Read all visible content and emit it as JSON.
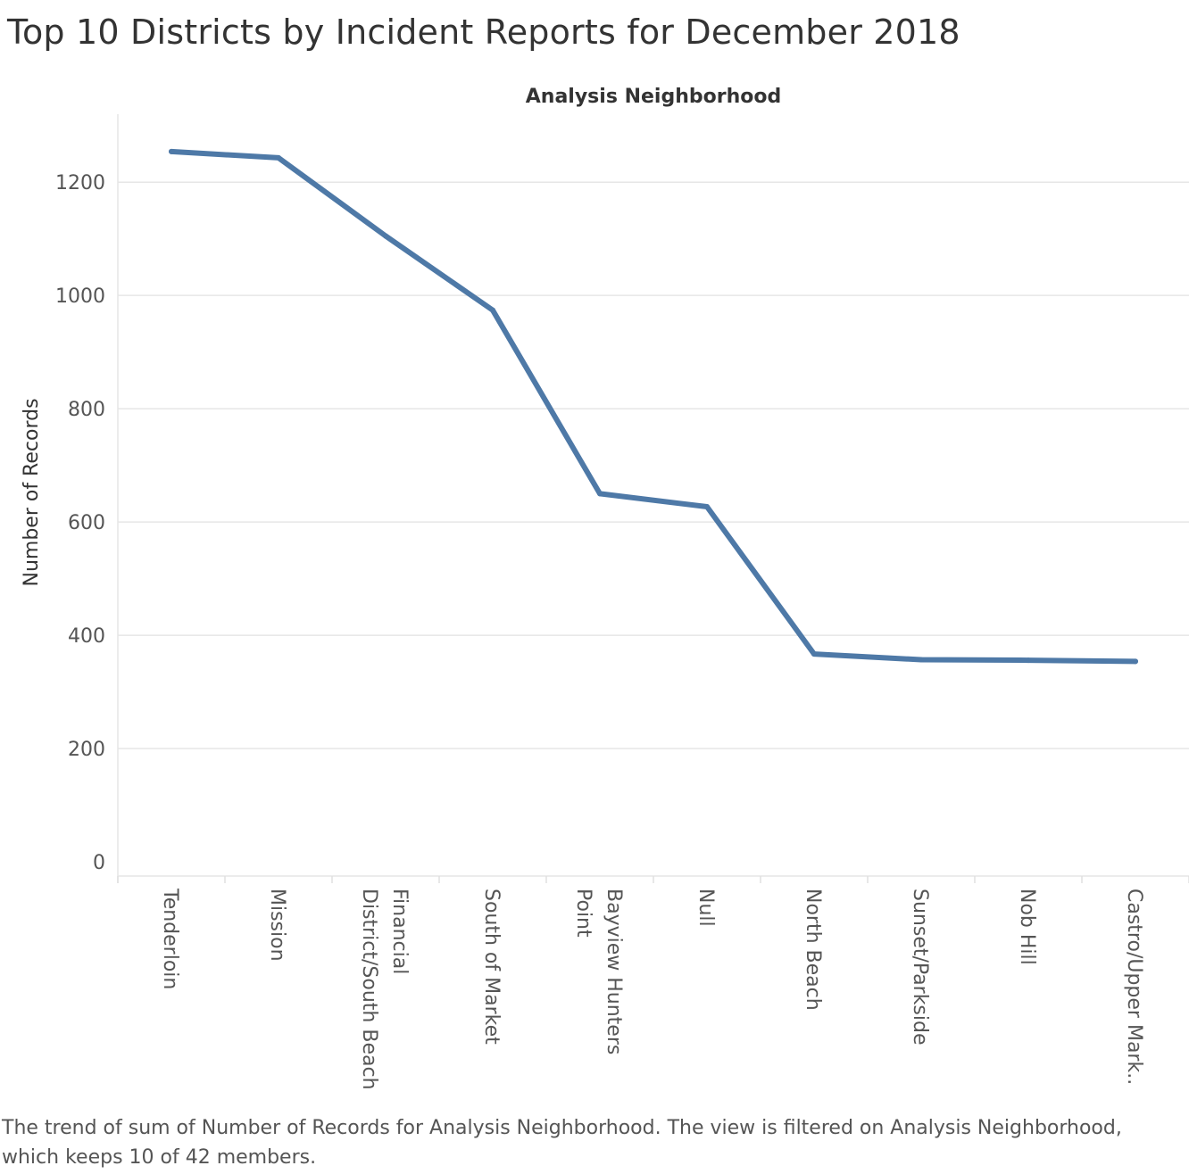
{
  "title": "Top 10 Districts by Incident Reports for December 2018",
  "caption": "The trend of sum of Number of Records for Analysis Neighborhood. The view is filtered on Analysis Neighborhood, which keeps 10 of 42 members.",
  "chart_data": {
    "type": "line",
    "title": "Top 10 Districts by Incident Reports for December 2018",
    "column_header": "Analysis Neighborhood",
    "xlabel": "",
    "ylabel": "Number of Records",
    "categories": [
      "Tenderloin",
      "Mission",
      "Financial District/South Beach",
      "South of Market",
      "Bayview Hunters Point",
      "Null",
      "North Beach",
      "Sunset/Parkside",
      "Nob Hill",
      "Castro/Upper Mark.."
    ],
    "category_display_lines": [
      [
        "Tenderloin"
      ],
      [
        "Mission"
      ],
      [
        "Financial",
        "District/South Beach"
      ],
      [
        "South of Market"
      ],
      [
        "Bayview Hunters",
        "Point"
      ],
      [
        "Null"
      ],
      [
        "North Beach"
      ],
      [
        "Sunset/Parkside"
      ],
      [
        "Nob Hill"
      ],
      [
        "Castro/Upper Mark.."
      ]
    ],
    "values": [
      1254,
      1243,
      1105,
      974,
      650,
      627,
      367,
      357,
      356,
      354
    ],
    "ylim": [
      -25,
      1320
    ],
    "yticks": [
      0,
      200,
      400,
      600,
      800,
      1000,
      1200
    ],
    "grid": true,
    "line_color": "#4e79a7"
  }
}
